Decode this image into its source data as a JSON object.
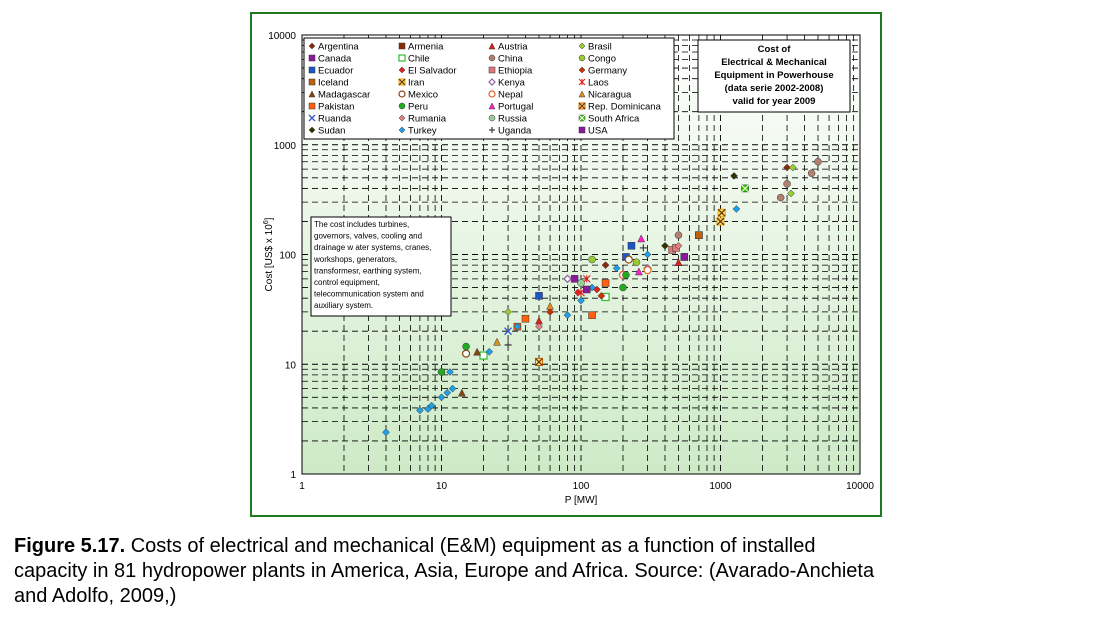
{
  "chart_data": {
    "type": "scatter",
    "xlabel": "P [MW]",
    "ylabel": "Cost [US$ x 10",
    "ylabel_sup": "6",
    "ylabel_end": "]",
    "x_log": true,
    "y_log": true,
    "xlim": [
      1,
      10000
    ],
    "ylim": [
      1,
      10000
    ],
    "x_ticks": [
      "1",
      "10",
      "100",
      "1000",
      "10000"
    ],
    "y_ticks": [
      "1",
      "10",
      "100",
      "1000",
      "10000"
    ],
    "grid": true,
    "legend_position": "top-left",
    "info_box": [
      "Cost  of",
      "Electrical & Mechanical",
      "Equipment in Powerhouse",
      "(data serie 2002-2008)",
      "valid for year 2009"
    ],
    "note_box": [
      "The cost includes turbines,",
      "governors, valves, cooling and",
      "drainage w ater systems, cranes,",
      "workshops, generators,",
      "transformesr, earthing system,",
      "control equipment,",
      "telecommunication system and",
      "auxiliary system."
    ],
    "series": [
      {
        "name": "Argentina",
        "marker": "diamond",
        "color": "#8b2a0a",
        "points": [
          [
            150,
            80
          ],
          [
            3000,
            620
          ]
        ]
      },
      {
        "name": "Armenia",
        "marker": "square",
        "color": "#8b2a0a",
        "points": [
          [
            50,
            10.5
          ],
          [
            700,
            150
          ]
        ]
      },
      {
        "name": "Austria",
        "marker": "triangle",
        "color": "#e02020",
        "points": [
          [
            50,
            25
          ],
          [
            500,
            85
          ]
        ]
      },
      {
        "name": "Brasil",
        "marker": "diamond",
        "color": "#9acd32",
        "points": [
          [
            30,
            30
          ],
          [
            3200,
            360
          ],
          [
            3300,
            620
          ]
        ]
      },
      {
        "name": "Canada",
        "marker": "square",
        "color": "#8b1a9a",
        "points": [
          [
            90,
            60
          ],
          [
            550,
            95
          ]
        ]
      },
      {
        "name": "Chile",
        "marker": "square-open",
        "color": "#33bb33",
        "points": [
          [
            20,
            12
          ],
          [
            150,
            41
          ]
        ]
      },
      {
        "name": "China",
        "marker": "circle",
        "color": "#b08070",
        "points": [
          [
            500,
            150
          ],
          [
            2700,
            330
          ],
          [
            3000,
            440
          ],
          [
            4500,
            550
          ],
          [
            5000,
            700
          ]
        ]
      },
      {
        "name": "Congo",
        "marker": "circle",
        "color": "#99cc33",
        "points": [
          [
            120,
            90
          ],
          [
            250,
            85
          ]
        ]
      },
      {
        "name": "Ecuador",
        "marker": "square",
        "color": "#1c55c8",
        "points": [
          [
            50,
            42
          ],
          [
            210,
            95
          ],
          [
            230,
            120
          ]
        ]
      },
      {
        "name": "El Salvador",
        "marker": "diamond",
        "color": "#e02020",
        "points": [
          [
            95,
            45
          ],
          [
            130,
            48
          ]
        ]
      },
      {
        "name": "Ethiopia",
        "marker": "square",
        "color": "#e07878",
        "points": [
          [
            450,
            110
          ],
          [
            480,
            115
          ]
        ]
      },
      {
        "name": "Germany",
        "marker": "diamond",
        "color": "#cc3300",
        "points": [
          [
            60,
            30
          ],
          [
            140,
            42
          ]
        ]
      },
      {
        "name": "Iceland",
        "marker": "square",
        "color": "#c06010",
        "points": [
          [
            50,
            10.5
          ],
          [
            700,
            150
          ]
        ]
      },
      {
        "name": "Iran",
        "marker": "x-square",
        "color": "#e8a000",
        "points": [
          [
            1000,
            200
          ],
          [
            1020,
            240
          ]
        ]
      },
      {
        "name": "Kenya",
        "marker": "diamond-open",
        "color": "#9060a0",
        "points": [
          [
            80,
            60
          ],
          [
            300,
            75
          ]
        ]
      },
      {
        "name": "Laos",
        "marker": "asterisk",
        "color": "#e02020",
        "points": [
          [
            100,
            45
          ],
          [
            110,
            60
          ]
        ]
      },
      {
        "name": "Madagascar",
        "marker": "triangle",
        "color": "#8b4513",
        "points": [
          [
            14,
            5.5
          ],
          [
            18,
            13
          ]
        ]
      },
      {
        "name": "Mexico",
        "marker": "circle-open",
        "color": "#8b4513",
        "points": [
          [
            15,
            12.5
          ],
          [
            220,
            90
          ]
        ]
      },
      {
        "name": "Nepal",
        "marker": "circle-open",
        "color": "#e06020",
        "points": [
          [
            300,
            72
          ],
          [
            200,
            65
          ]
        ]
      },
      {
        "name": "Nicaragua",
        "marker": "triangle",
        "color": "#e09020",
        "points": [
          [
            25,
            16
          ],
          [
            60,
            34
          ]
        ]
      },
      {
        "name": "Pakistan",
        "marker": "square",
        "color": "#ff6010",
        "points": [
          [
            35,
            22
          ],
          [
            40,
            26
          ],
          [
            120,
            28
          ],
          [
            150,
            55
          ]
        ]
      },
      {
        "name": "Peru",
        "marker": "circle",
        "color": "#22aa22",
        "points": [
          [
            10,
            8.5
          ],
          [
            15,
            14.5
          ],
          [
            200,
            50
          ],
          [
            210,
            65
          ]
        ]
      },
      {
        "name": "Portugal",
        "marker": "triangle",
        "color": "#ff22cc",
        "points": [
          [
            260,
            70
          ],
          [
            270,
            140
          ]
        ]
      },
      {
        "name": "Rep. Dominicana",
        "marker": "x-square",
        "color": "#cc6600",
        "points": [
          [
            50,
            10.5
          ]
        ]
      },
      {
        "name": "Ruanda",
        "marker": "x",
        "color": "#3355cc",
        "points": [
          [
            30,
            20
          ]
        ]
      },
      {
        "name": "Rumania",
        "marker": "diamond",
        "color": "#e08080",
        "points": [
          [
            50,
            22
          ],
          [
            500,
            120
          ]
        ]
      },
      {
        "name": "Russia",
        "marker": "circle",
        "color": "#99cc99",
        "points": [
          [
            100,
            55
          ],
          [
            1500,
            400
          ]
        ]
      },
      {
        "name": "South Africa",
        "marker": "square-x",
        "color": "#33cc00",
        "points": [
          [
            1500,
            400
          ]
        ]
      },
      {
        "name": "Sudan",
        "marker": "diamond",
        "color": "#333300",
        "points": [
          [
            400,
            120
          ],
          [
            1250,
            520
          ]
        ]
      },
      {
        "name": "Turkey",
        "marker": "diamond",
        "color": "#1ea0e8",
        "points": [
          [
            4,
            2.4
          ],
          [
            7,
            3.8
          ],
          [
            8,
            3.9
          ],
          [
            8.5,
            4.2
          ],
          [
            10,
            5
          ],
          [
            11,
            5.5
          ],
          [
            12,
            6
          ],
          [
            11.5,
            8.5
          ],
          [
            22,
            13
          ],
          [
            35,
            22
          ],
          [
            80,
            28
          ],
          [
            100,
            38
          ],
          [
            120,
            50
          ],
          [
            180,
            75
          ],
          [
            300,
            100
          ],
          [
            1300,
            260
          ]
        ]
      },
      {
        "name": "Uganda",
        "marker": "plus",
        "color": "#444444",
        "points": [
          [
            30,
            15
          ],
          [
            280,
            115
          ]
        ]
      },
      {
        "name": "USA",
        "marker": "square",
        "color": "#8b1a9a",
        "points": [
          [
            110,
            48
          ],
          [
            550,
            95
          ]
        ]
      }
    ]
  },
  "caption": {
    "label": "Figure 5.17.",
    "line1": " Costs of electrical and mechanical (E&M) equipment as a function of installed",
    "line2": "capacity in 81 hydropower plants in America, Asia, Europe and Africa. Source: (Avarado-Anchieta",
    "line3": "and Adolfo, 2009,)"
  }
}
